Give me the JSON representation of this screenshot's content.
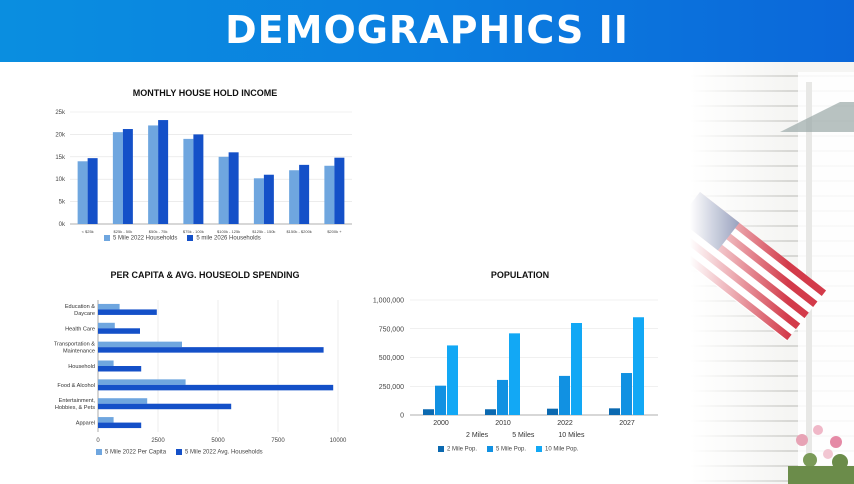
{
  "header": {
    "title": "DEMOGRAPHICS II"
  },
  "colors": {
    "header_blue": "#0a84df",
    "light_blue": "#6fa6df",
    "dark_blue": "#1450c8",
    "pop_dark": "#0b69b0",
    "pop_mid": "#1191e2",
    "pop_light": "#12a8f5"
  },
  "income": {
    "title": "MONTHLY HOUSE HOLD INCOME",
    "legend": [
      "5 Mile 2022 Households",
      "5 mile 2026 Households"
    ]
  },
  "spending": {
    "title": "PER CAPITA & AVG. HOUSEOLD SPENDING",
    "legend": [
      "5 Mile 2022 Per Capita",
      "5 Mile 2022 Avg. Households"
    ]
  },
  "population": {
    "title": "POPULATION",
    "radius_labels": [
      "2 Miles",
      "5 Miles",
      "10 Miles"
    ],
    "legend": [
      "2 Mile Pop.",
      "5 Mile Pop.",
      "10 Mile Pop."
    ]
  },
  "chart_data": [
    {
      "type": "bar",
      "title": "MONTHLY HOUSE HOLD INCOME",
      "categories": [
        "< $25k",
        "$25k - 50k",
        "$50k - 75k",
        "$75k - 100k",
        "$100k - 125k",
        "$125k - 150k",
        "$150k - $200k",
        "$200k +"
      ],
      "yticks": [
        "0k",
        "5k",
        "10k",
        "15k",
        "20k",
        "25k"
      ],
      "ylim": [
        0,
        25000
      ],
      "series": [
        {
          "name": "5 Mile 2022 Households",
          "values": [
            14000,
            20500,
            22000,
            19000,
            15000,
            10200,
            12000,
            13000
          ]
        },
        {
          "name": "5 mile 2026 Households",
          "values": [
            14700,
            21200,
            23200,
            20000,
            16000,
            11000,
            13200,
            14800
          ]
        }
      ],
      "grid": true,
      "legend_position": "bottom"
    },
    {
      "type": "bar",
      "orientation": "horizontal",
      "title": "PER CAPITA & AVG. HOUSEOLD SPENDING",
      "categories": [
        "Education &\nDaycare",
        "Health Care",
        "Transportation &\nMaintenance",
        "Household",
        "Food & Alcohol",
        "Entertainment,\nHobbies, & Pets",
        "Apparel"
      ],
      "xticks": [
        "0",
        "2500",
        "5000",
        "7500",
        "10000"
      ],
      "xlim": [
        0,
        10000
      ],
      "series": [
        {
          "name": "5 Mile 2022 Per Capita",
          "values": [
            900,
            700,
            3500,
            650,
            3650,
            2050,
            650
          ]
        },
        {
          "name": "5 Mile 2022 Avg. Households",
          "values": [
            2450,
            1750,
            9400,
            1800,
            9800,
            5550,
            1800
          ]
        }
      ],
      "grid": true,
      "legend_position": "bottom"
    },
    {
      "type": "bar",
      "title": "POPULATION",
      "categories": [
        "2000",
        "2010",
        "2022",
        "2027"
      ],
      "yticks": [
        "0",
        "250,000",
        "500,000",
        "750,000",
        "1,000,000"
      ],
      "ylim": [
        0,
        1000000
      ],
      "series": [
        {
          "name": "2 Mile Pop.",
          "values": [
            50000,
            50000,
            55000,
            58000
          ]
        },
        {
          "name": "5 Mile Pop.",
          "values": [
            255000,
            305000,
            340000,
            365000
          ]
        },
        {
          "name": "10 Mile Pop.",
          "values": [
            605000,
            710000,
            800000,
            850000
          ]
        }
      ],
      "grid": true,
      "legend_position": "bottom"
    }
  ]
}
